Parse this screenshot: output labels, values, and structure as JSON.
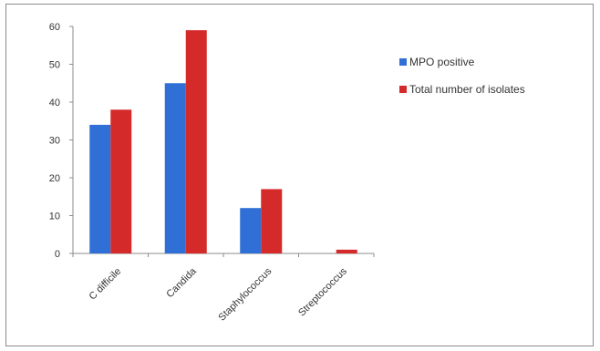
{
  "chart_data": {
    "type": "bar",
    "title": "",
    "xlabel": "",
    "ylabel": "",
    "categories": [
      "C difficile",
      "Candida",
      "Staphylococcus",
      "Streptococcus"
    ],
    "series": [
      {
        "name": "MPO positive",
        "values": [
          34,
          45,
          12,
          0
        ],
        "color": "#2f6fd6"
      },
      {
        "name": "Total number of isolates",
        "values": [
          38,
          59,
          17,
          1
        ],
        "color": "#d42a2a"
      }
    ],
    "ylim": [
      0,
      60
    ],
    "yticks": [
      0,
      10,
      20,
      30,
      40,
      50,
      60
    ],
    "grid": false,
    "legend_position": "right"
  }
}
